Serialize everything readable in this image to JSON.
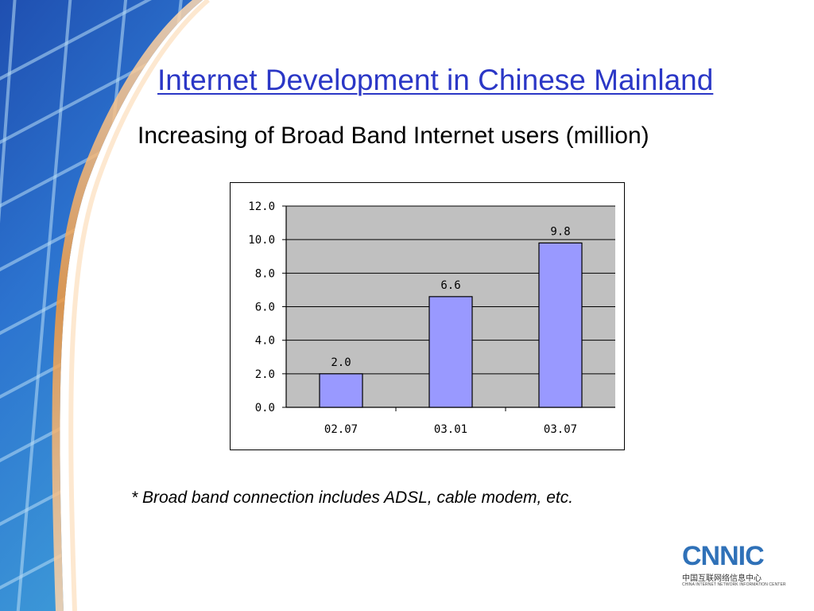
{
  "slide": {
    "title": "Internet Development in Chinese Mainland",
    "subtitle": "Increasing of Broad Band Internet users (million)",
    "footnote": "* Broad band connection includes ADSL, cable modem, etc."
  },
  "logo": {
    "mark": "CNNIC",
    "chinese": "中国互联网络信息中心",
    "english": "CHINA INTERNET NETWORK INFORMATION CENTER"
  },
  "colors": {
    "title": "#2b37c6",
    "bar": "#9999ff",
    "plot_bg": "#c0c0c0",
    "logo": "#2f71b8"
  },
  "chart_data": {
    "type": "bar",
    "categories": [
      "02.07",
      "03.01",
      "03.07"
    ],
    "values": [
      2.0,
      6.6,
      9.8
    ],
    "value_labels": [
      "2.0",
      "6.6",
      "9.8"
    ],
    "y_ticks": [
      "0.0",
      "2.0",
      "4.0",
      "6.0",
      "8.0",
      "10.0",
      "12.0"
    ],
    "ylim": [
      0,
      12
    ],
    "grid": true,
    "legend": "none",
    "title": "",
    "xlabel": "",
    "ylabel": ""
  }
}
